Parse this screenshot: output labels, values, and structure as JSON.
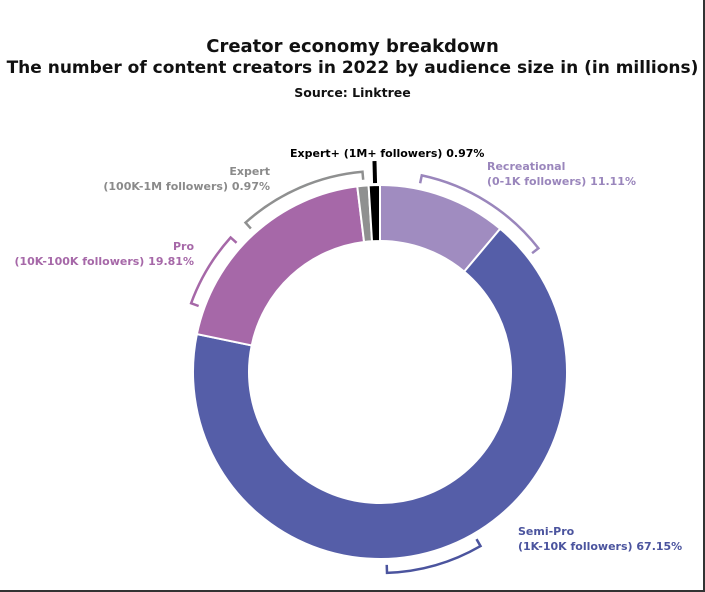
{
  "chart_data": {
    "type": "pie",
    "donut": true,
    "title": "Creator economy breakdown",
    "subtitle": "The number of content creators in 2022 by audience size in (in millions)",
    "source": "Source: Linktree",
    "slices": [
      {
        "name": "Recreational",
        "range": "(0-1K followers)",
        "value": 11.11,
        "label": "11.11%",
        "color": "#a08cc0"
      },
      {
        "name": "Semi-Pro",
        "range": "(1K-10K followers)",
        "value": 67.15,
        "label": "67.15%",
        "color": "#555ea8"
      },
      {
        "name": "Pro",
        "range": "(10K-100K followers)",
        "value": 19.81,
        "label": "19.81%",
        "color": "#a668a8"
      },
      {
        "name": "Expert",
        "range": "(100K-1M followers)",
        "value": 0.97,
        "label": "0.97%",
        "color": "#8f9090"
      },
      {
        "name": "Expert+",
        "range": "(1M+ followers)",
        "value": 0.97,
        "label": "0.97%",
        "color": "#000000"
      }
    ]
  }
}
